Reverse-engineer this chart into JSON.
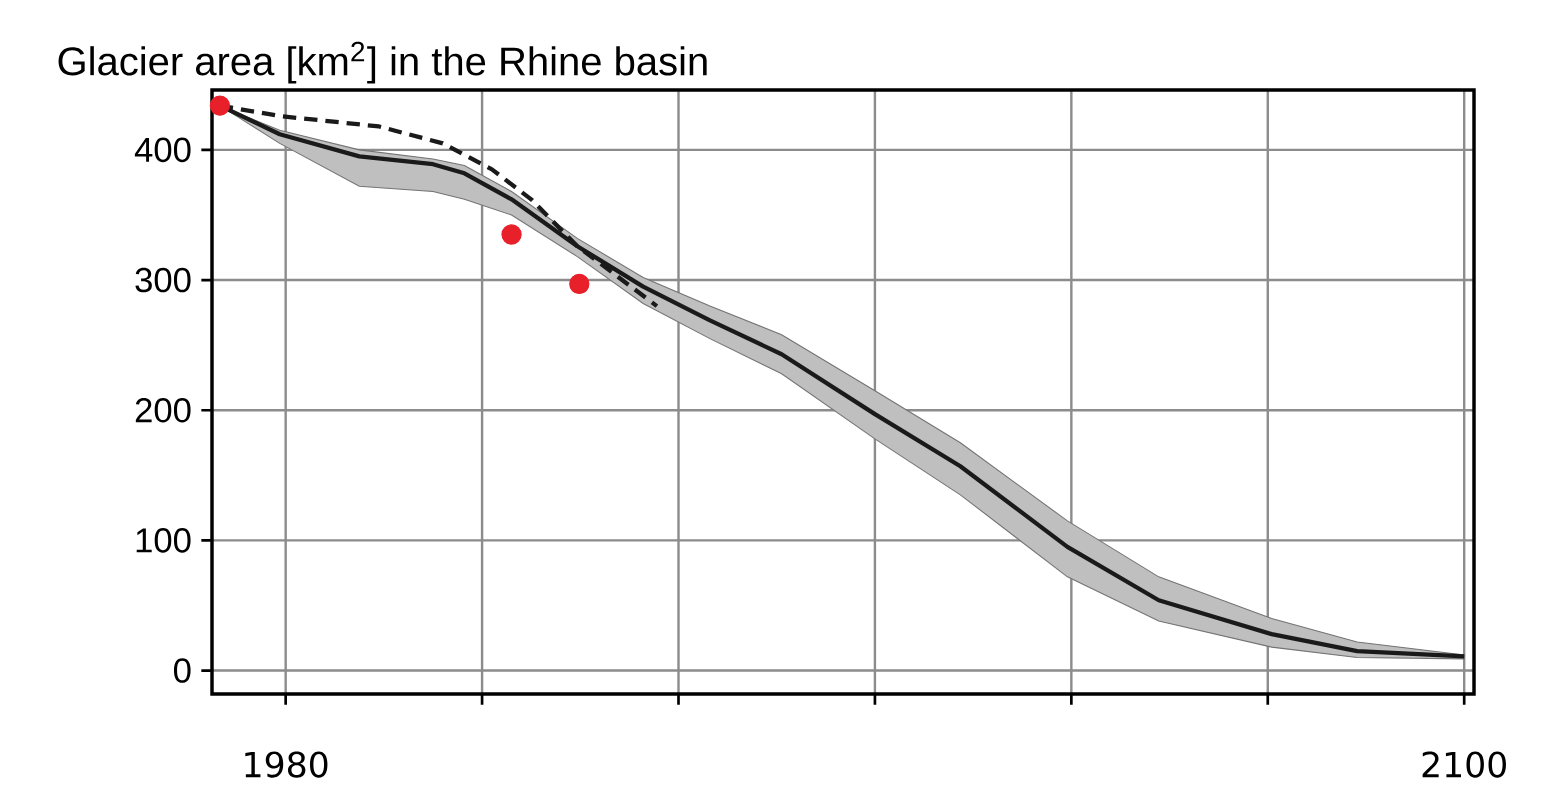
{
  "chart_data": {
    "type": "line",
    "title": "Glacier area [km$^{2}$] in the Rhine basin",
    "xlim": [
      1972.5,
      2101
    ],
    "ylim": [
      -18,
      446
    ],
    "xticks": [
      1980,
      {
        "value": 2000,
        "label": null
      },
      {
        "value": 2020,
        "label": null
      },
      {
        "value": 2040,
        "label": null
      },
      {
        "value": 2060,
        "label": null
      },
      {
        "value": 2080,
        "label": null
      },
      2100
    ],
    "yticks": [
      0,
      100,
      200,
      300,
      400
    ],
    "grid": true,
    "series": [
      {
        "color": "#1a1a1a",
        "line_style": "solid",
        "x": [
          1973.3,
          1979.4,
          1987.5,
          1995,
          1998.2,
          2003,
          2009.7,
          2016.4,
          2023.2,
          2030.5,
          2040,
          2048.7,
          2059.6,
          2068.9,
          2080.4,
          2089.1,
          2100
        ],
        "values": [
          434,
          412,
          395,
          389,
          382,
          362,
          326,
          295,
          269,
          243,
          197,
          157,
          95,
          54,
          28,
          15,
          11
        ],
        "lower": [
          434,
          405,
          372,
          368,
          362,
          350,
          318,
          282,
          255,
          228,
          178,
          135,
          72,
          38,
          18,
          10,
          9
        ],
        "upper": [
          434,
          415,
          400,
          393,
          388,
          368,
          332,
          302,
          280,
          258,
          215,
          175,
          115,
          72,
          40,
          22,
          12
        ]
      },
      {
        "color": "#1a1a1a",
        "line_style": "dashed",
        "x": [
          1973.3,
          1979.4,
          1989.5,
          1996,
          2001,
          2005,
          2009.7,
          2017.8
        ],
        "values": [
          434,
          426,
          418,
          405,
          385,
          362,
          326,
          280
        ]
      },
      {
        "type": "scatter",
        "color": "#e8202a",
        "marker": "circle",
        "x": [
          1973.3,
          2003,
          2009.9
        ],
        "values": [
          434,
          335,
          297
        ]
      }
    ]
  }
}
